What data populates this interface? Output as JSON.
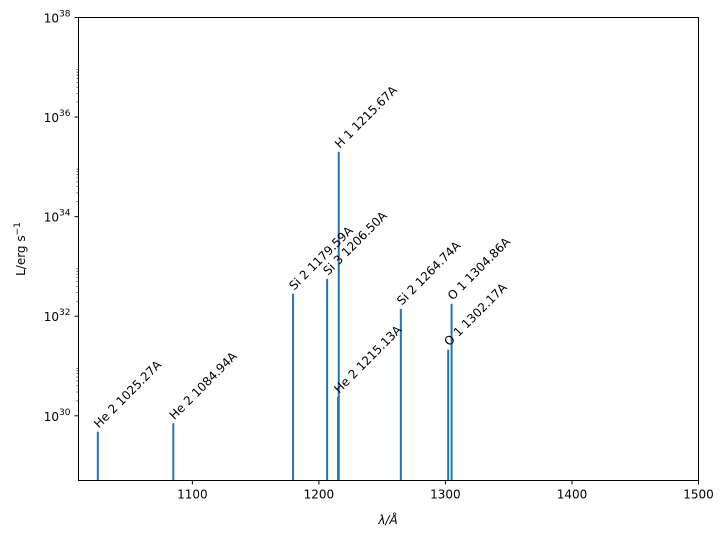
{
  "chart_data": {
    "type": "bar",
    "title": "",
    "xlabel": "λ/Å",
    "ylabel_main": "L/erg s",
    "ylabel_exp": "−1",
    "xlim": [
      1010,
      1500
    ],
    "ylim_log10": [
      28.7,
      38
    ],
    "yscale": "log",
    "x_ticks": [
      1100,
      1200,
      1300,
      1400,
      1500
    ],
    "y_ticks": [
      {
        "exp": 30,
        "base": "10",
        "sup": "30"
      },
      {
        "exp": 32,
        "base": "10",
        "sup": "32"
      },
      {
        "exp": 34,
        "base": "10",
        "sup": "34"
      },
      {
        "exp": 36,
        "base": "10",
        "sup": "36"
      },
      {
        "exp": 38,
        "base": "10",
        "sup": "38"
      }
    ],
    "series_color": "#1f77b4",
    "lines": [
      {
        "label": "He 2 1025.27A",
        "x": 1025.27,
        "log10_y": 29.68
      },
      {
        "label": "He 2 1084.94A",
        "x": 1084.94,
        "log10_y": 29.85
      },
      {
        "label": "Si 2 1179.59A",
        "x": 1179.59,
        "log10_y": 32.45
      },
      {
        "label": "Si 3 1206.50A",
        "x": 1206.5,
        "log10_y": 32.75
      },
      {
        "label": "He 2 1215.13A",
        "x": 1215.13,
        "log10_y": 30.38
      },
      {
        "label": "H 1 1215.67A",
        "x": 1215.67,
        "log10_y": 35.3
      },
      {
        "label": "Si 2 1264.74A",
        "x": 1264.74,
        "log10_y": 32.15
      },
      {
        "label": "O 1 1302.17A",
        "x": 1302.17,
        "log10_y": 31.33
      },
      {
        "label": "O 1 1304.86A",
        "x": 1304.86,
        "log10_y": 32.25
      }
    ]
  }
}
